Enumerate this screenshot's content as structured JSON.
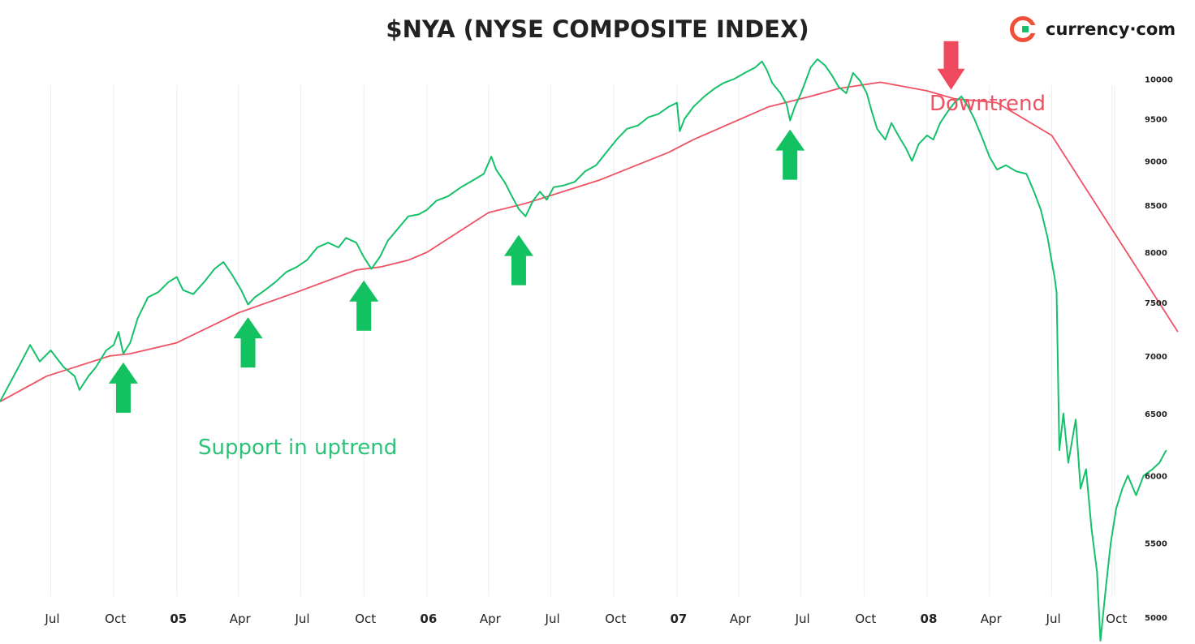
{
  "chart_data": {
    "type": "line",
    "title": "$NYA (NYSE COMPOSITE INDEX)",
    "brand": "currency·com",
    "colors": {
      "price": "#17c06a",
      "moving_average": "#ee5263",
      "up_arrow": "#12c160",
      "down_arrow": "#f04a5e",
      "grid": "#ededed"
    },
    "x_ticks": [
      {
        "label": "Jul",
        "date": "2004-07",
        "bold": false
      },
      {
        "label": "Oct",
        "date": "2004-10",
        "bold": false
      },
      {
        "label": "05",
        "date": "2005-01",
        "bold": true
      },
      {
        "label": "Apr",
        "date": "2005-04",
        "bold": false
      },
      {
        "label": "Jul",
        "date": "2005-07",
        "bold": false
      },
      {
        "label": "Oct",
        "date": "2005-10",
        "bold": false
      },
      {
        "label": "06",
        "date": "2006-01",
        "bold": true
      },
      {
        "label": "Apr",
        "date": "2006-04",
        "bold": false
      },
      {
        "label": "Jul",
        "date": "2006-07",
        "bold": false
      },
      {
        "label": "Oct",
        "date": "2006-10",
        "bold": false
      },
      {
        "label": "07",
        "date": "2007-01",
        "bold": true
      },
      {
        "label": "Apr",
        "date": "2007-04",
        "bold": false
      },
      {
        "label": "Jul",
        "date": "2007-07",
        "bold": false
      },
      {
        "label": "Oct",
        "date": "2007-10",
        "bold": false
      },
      {
        "label": "08",
        "date": "2008-01",
        "bold": true
      },
      {
        "label": "Apr",
        "date": "2008-04",
        "bold": false
      },
      {
        "label": "Jul",
        "date": "2008-07",
        "bold": false
      },
      {
        "label": "Oct",
        "date": "2008-10",
        "bold": false
      }
    ],
    "y_ticks": [
      "10000",
      "9500",
      "9000",
      "8500",
      "8000",
      "7500",
      "7000",
      "6500",
      "6000",
      "5500",
      "5000"
    ],
    "y_scale": "log",
    "y_range": [
      4850,
      10400
    ],
    "x_range": [
      "2004-04-18",
      "2009-01-26"
    ],
    "grid": {
      "vertical": true,
      "horizontal": false
    },
    "series": [
      {
        "role": "price",
        "points": [
          [
            "2004-04-18",
            6600
          ],
          [
            "2004-05-15",
            6900
          ],
          [
            "2004-06-01",
            7100
          ],
          [
            "2004-06-15",
            6950
          ],
          [
            "2004-07-01",
            7050
          ],
          [
            "2004-07-20",
            6900
          ],
          [
            "2004-08-05",
            6820
          ],
          [
            "2004-08-12",
            6700
          ],
          [
            "2004-08-25",
            6820
          ],
          [
            "2004-09-05",
            6900
          ],
          [
            "2004-09-20",
            7050
          ],
          [
            "2004-10-01",
            7100
          ],
          [
            "2004-10-08",
            7220
          ],
          [
            "2004-10-15",
            7020
          ],
          [
            "2004-10-25",
            7120
          ],
          [
            "2004-11-05",
            7350
          ],
          [
            "2004-11-20",
            7550
          ],
          [
            "2004-12-05",
            7600
          ],
          [
            "2004-12-20",
            7700
          ],
          [
            "2005-01-01",
            7750
          ],
          [
            "2005-01-10",
            7620
          ],
          [
            "2005-01-25",
            7580
          ],
          [
            "2005-02-10",
            7700
          ],
          [
            "2005-02-25",
            7830
          ],
          [
            "2005-03-10",
            7900
          ],
          [
            "2005-03-22",
            7780
          ],
          [
            "2005-04-05",
            7620
          ],
          [
            "2005-04-15",
            7480
          ],
          [
            "2005-04-25",
            7550
          ],
          [
            "2005-05-10",
            7620
          ],
          [
            "2005-05-25",
            7700
          ],
          [
            "2005-06-10",
            7800
          ],
          [
            "2005-06-25",
            7850
          ],
          [
            "2005-07-10",
            7920
          ],
          [
            "2005-07-25",
            8050
          ],
          [
            "2005-08-10",
            8100
          ],
          [
            "2005-08-25",
            8050
          ],
          [
            "2005-09-05",
            8150
          ],
          [
            "2005-09-20",
            8100
          ],
          [
            "2005-10-01",
            7950
          ],
          [
            "2005-10-12",
            7830
          ],
          [
            "2005-10-25",
            7960
          ],
          [
            "2005-11-05",
            8120
          ],
          [
            "2005-11-20",
            8250
          ],
          [
            "2005-12-05",
            8380
          ],
          [
            "2005-12-20",
            8400
          ],
          [
            "2006-01-01",
            8450
          ],
          [
            "2006-01-15",
            8550
          ],
          [
            "2006-02-01",
            8600
          ],
          [
            "2006-02-20",
            8700
          ],
          [
            "2006-03-10",
            8780
          ],
          [
            "2006-03-25",
            8850
          ],
          [
            "2006-04-05",
            9050
          ],
          [
            "2006-04-12",
            8900
          ],
          [
            "2006-04-25",
            8750
          ],
          [
            "2006-05-05",
            8600
          ],
          [
            "2006-05-15",
            8460
          ],
          [
            "2006-05-25",
            8380
          ],
          [
            "2006-06-05",
            8550
          ],
          [
            "2006-06-15",
            8650
          ],
          [
            "2006-06-25",
            8560
          ],
          [
            "2006-07-05",
            8700
          ],
          [
            "2006-07-20",
            8720
          ],
          [
            "2006-08-05",
            8760
          ],
          [
            "2006-08-20",
            8880
          ],
          [
            "2006-09-05",
            8950
          ],
          [
            "2006-09-20",
            9100
          ],
          [
            "2006-10-05",
            9250
          ],
          [
            "2006-10-20",
            9380
          ],
          [
            "2006-11-05",
            9420
          ],
          [
            "2006-11-20",
            9520
          ],
          [
            "2006-12-05",
            9560
          ],
          [
            "2006-12-20",
            9650
          ],
          [
            "2007-01-01",
            9700
          ],
          [
            "2007-01-05",
            9350
          ],
          [
            "2007-01-12",
            9500
          ],
          [
            "2007-01-25",
            9650
          ],
          [
            "2007-02-10",
            9780
          ],
          [
            "2007-02-25",
            9880
          ],
          [
            "2007-03-10",
            9950
          ],
          [
            "2007-03-25",
            10000
          ],
          [
            "2007-04-10",
            10080
          ],
          [
            "2007-04-25",
            10150
          ],
          [
            "2007-05-05",
            10230
          ],
          [
            "2007-05-12",
            10120
          ],
          [
            "2007-05-20",
            9950
          ],
          [
            "2007-06-01",
            9820
          ],
          [
            "2007-06-10",
            9680
          ],
          [
            "2007-06-15",
            9480
          ],
          [
            "2007-06-22",
            9650
          ],
          [
            "2007-07-01",
            9820
          ],
          [
            "2007-07-08",
            9980
          ],
          [
            "2007-07-15",
            10150
          ],
          [
            "2007-07-25",
            10260
          ],
          [
            "2007-08-05",
            10180
          ],
          [
            "2007-08-15",
            10050
          ],
          [
            "2007-08-25",
            9900
          ],
          [
            "2007-09-05",
            9820
          ],
          [
            "2007-09-15",
            10080
          ],
          [
            "2007-09-25",
            9980
          ],
          [
            "2007-10-05",
            9820
          ],
          [
            "2007-10-12",
            9600
          ],
          [
            "2007-10-20",
            9380
          ],
          [
            "2007-11-01",
            9250
          ],
          [
            "2007-11-10",
            9450
          ],
          [
            "2007-11-20",
            9300
          ],
          [
            "2007-12-01",
            9150
          ],
          [
            "2007-12-10",
            9000
          ],
          [
            "2007-12-20",
            9200
          ],
          [
            "2008-01-01",
            9300
          ],
          [
            "2008-01-10",
            9250
          ],
          [
            "2008-01-20",
            9450
          ],
          [
            "2008-02-01",
            9600
          ],
          [
            "2008-02-10",
            9700
          ],
          [
            "2008-02-20",
            9780
          ],
          [
            "2008-03-01",
            9650
          ],
          [
            "2008-03-10",
            9500
          ],
          [
            "2008-03-20",
            9300
          ],
          [
            "2008-04-01",
            9050
          ],
          [
            "2008-04-12",
            8900
          ],
          [
            "2008-04-25",
            8950
          ],
          [
            "2008-05-10",
            8880
          ],
          [
            "2008-05-25",
            8850
          ],
          [
            "2008-06-05",
            8650
          ],
          [
            "2008-06-15",
            8450
          ],
          [
            "2008-06-25",
            8150
          ],
          [
            "2008-07-01",
            7900
          ],
          [
            "2008-07-05",
            7750
          ],
          [
            "2008-07-08",
            7600
          ],
          [
            "2008-07-12",
            6200
          ],
          [
            "2008-07-18",
            6500
          ],
          [
            "2008-07-25",
            6100
          ],
          [
            "2008-08-05",
            6450
          ],
          [
            "2008-08-12",
            5900
          ],
          [
            "2008-08-20",
            6050
          ],
          [
            "2008-08-28",
            5600
          ],
          [
            "2008-09-05",
            5300
          ],
          [
            "2008-09-10",
            4850
          ],
          [
            "2008-09-18",
            5200
          ],
          [
            "2008-09-25",
            5500
          ],
          [
            "2008-10-03",
            5750
          ],
          [
            "2008-10-12",
            5900
          ],
          [
            "2008-10-20",
            6000
          ],
          [
            "2008-11-01",
            5850
          ],
          [
            "2008-11-12",
            6000
          ],
          [
            "2008-11-25",
            6050
          ],
          [
            "2008-12-05",
            6100
          ],
          [
            "2008-12-15",
            6200
          ]
        ]
      },
      {
        "role": "moving_average",
        "points": [
          [
            "2004-04-18",
            6600
          ],
          [
            "2004-06-25",
            6820
          ],
          [
            "2004-09-25",
            7000
          ],
          [
            "2004-10-25",
            7020
          ],
          [
            "2005-01-01",
            7120
          ],
          [
            "2005-04-01",
            7400
          ],
          [
            "2005-06-25",
            7600
          ],
          [
            "2005-09-20",
            7820
          ],
          [
            "2005-10-25",
            7850
          ],
          [
            "2005-12-05",
            7920
          ],
          [
            "2006-01-01",
            8000
          ],
          [
            "2006-04-01",
            8420
          ],
          [
            "2006-05-25",
            8520
          ],
          [
            "2006-09-10",
            8780
          ],
          [
            "2006-12-20",
            9100
          ],
          [
            "2007-01-25",
            9250
          ],
          [
            "2007-05-15",
            9650
          ],
          [
            "2007-07-15",
            9780
          ],
          [
            "2007-08-25",
            9880
          ],
          [
            "2007-10-25",
            9960
          ],
          [
            "2008-01-01",
            9850
          ],
          [
            "2008-02-10",
            9750
          ],
          [
            "2008-03-20",
            9720
          ],
          [
            "2008-04-12",
            9700
          ],
          [
            "2008-07-01",
            9300
          ],
          [
            "2009-01-01",
            7220
          ]
        ]
      }
    ],
    "annotations": [
      {
        "text": "Support in uptrend",
        "color": "#2ec278"
      },
      {
        "text": "Downtrend",
        "color": "#ee5263"
      }
    ],
    "up_arrows": [
      {
        "date": "2004-10-15",
        "value": 7000
      },
      {
        "date": "2005-04-15",
        "value": 7420
      },
      {
        "date": "2005-10-01",
        "value": 7780
      },
      {
        "date": "2006-05-15",
        "value": 8250
      },
      {
        "date": "2007-06-15",
        "value": 9450
      }
    ],
    "down_arrows": [
      {
        "date": "2008-02-05",
        "value": 9720
      }
    ]
  }
}
